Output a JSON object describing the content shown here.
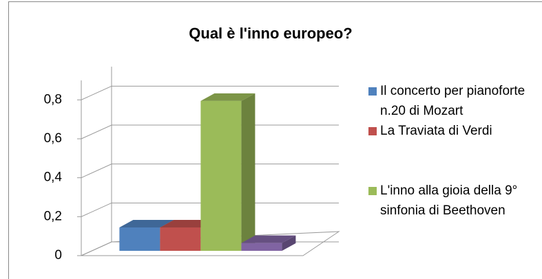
{
  "chart_data": {
    "type": "bar3d",
    "title": "Qual è l'inno europeo?",
    "series": [
      {
        "name": "Il concerto per pianoforte n.20 di Mozart",
        "color": "#4f81bd",
        "values": [
          0.12
        ]
      },
      {
        "name": "La Traviata di Verdi",
        "color": "#c0504d",
        "values": [
          0.12
        ]
      },
      {
        "name": "L'inno alla gioia della 9° sinfonia di Beethoven",
        "color": "#9bbb59",
        "values": [
          0.77
        ]
      },
      {
        "color": "#8064a2",
        "values": [
          0.04
        ]
      }
    ],
    "ylim": [
      0,
      0.9
    ],
    "yticks": [
      0,
      {
        "value": 0.2,
        "label": "0,2"
      },
      {
        "value": 0.4,
        "label": "0,4"
      },
      {
        "value": 0.6,
        "label": "0,6"
      },
      {
        "value": 0.8,
        "label": "0,8"
      }
    ],
    "grid": true
  }
}
